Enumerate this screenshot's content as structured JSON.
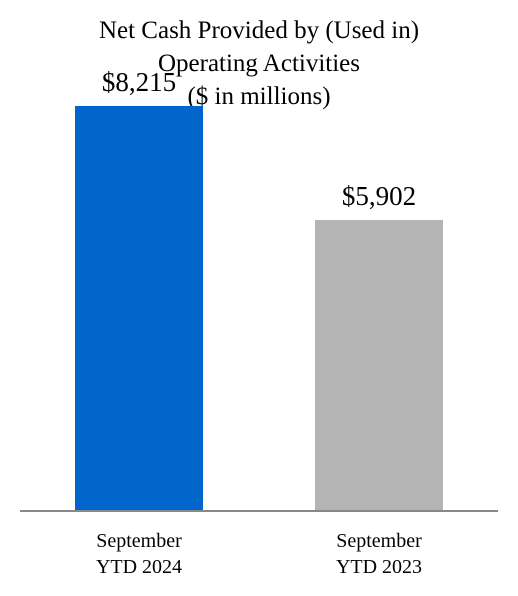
{
  "chart_data": {
    "type": "bar",
    "title_lines": [
      "Net Cash Provided by (Used in)",
      "Operating Activities",
      "($ in millions)"
    ],
    "categories": [
      [
        "September",
        "YTD 2024"
      ],
      [
        "September",
        "YTD 2023"
      ]
    ],
    "values": [
      8215,
      5902
    ],
    "data_labels": [
      "$8,215",
      "$5,902"
    ],
    "colors": [
      "#0066cc",
      "#b4b4b4"
    ],
    "axis_color": "#888888",
    "ylim": [
      0,
      10000
    ],
    "grid": false,
    "legend": "none"
  }
}
